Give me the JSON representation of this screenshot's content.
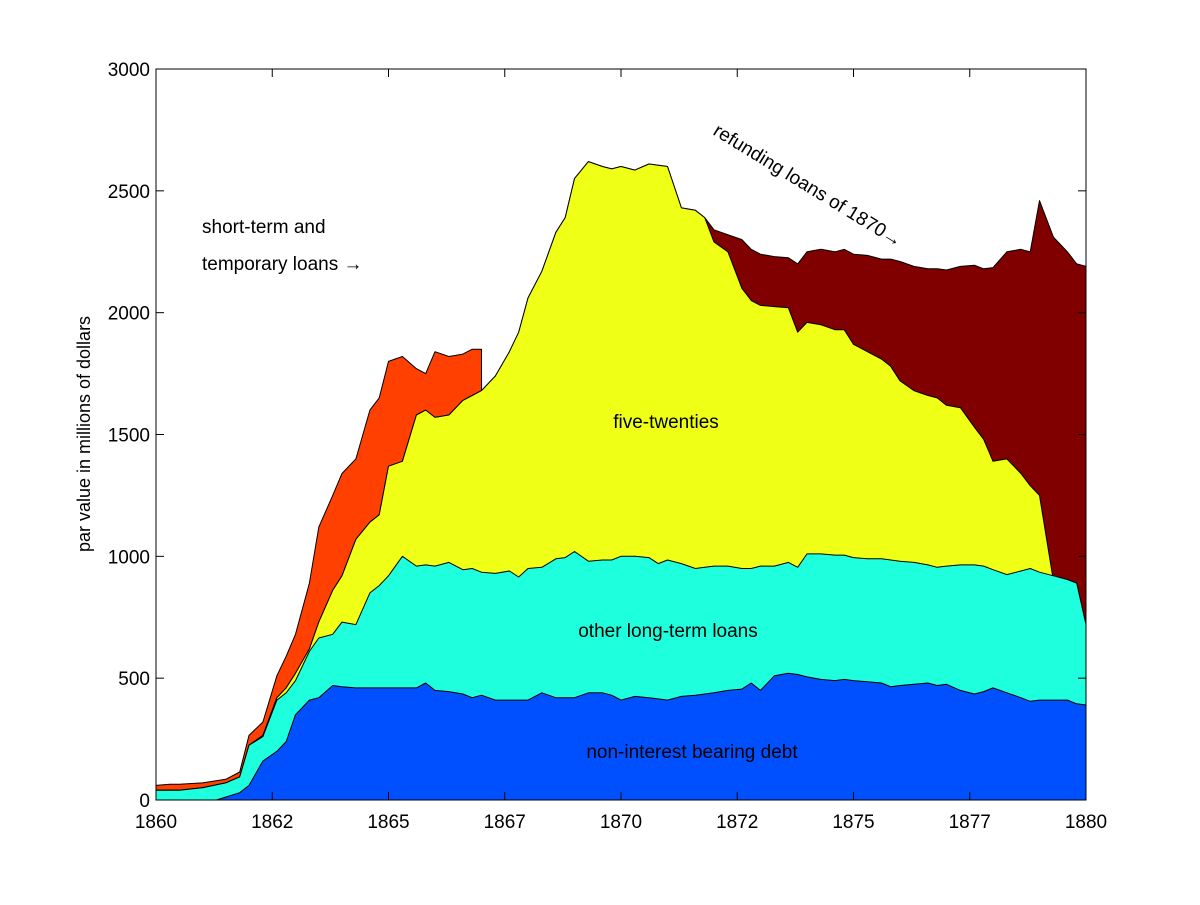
{
  "chart_data": {
    "type": "area",
    "stacked": true,
    "title": "",
    "xlabel": "",
    "ylabel": "par value in millions of dollars",
    "xlim": [
      1860,
      1880
    ],
    "ylim": [
      0,
      3000
    ],
    "grid": false,
    "x_ticks": [
      {
        "value": 1860,
        "label": "1860"
      },
      {
        "value": 1862.5,
        "label": "1862"
      },
      {
        "value": 1865,
        "label": "1865"
      },
      {
        "value": 1867.5,
        "label": "1867"
      },
      {
        "value": 1870,
        "label": "1870"
      },
      {
        "value": 1872.5,
        "label": "1872"
      },
      {
        "value": 1875,
        "label": "1875"
      },
      {
        "value": 1877.5,
        "label": "1877"
      },
      {
        "value": 1880,
        "label": "1880"
      }
    ],
    "y_ticks": [
      {
        "value": 0,
        "label": "0"
      },
      {
        "value": 500,
        "label": "500"
      },
      {
        "value": 1000,
        "label": "1000"
      },
      {
        "value": 1500,
        "label": "1500"
      },
      {
        "value": 2000,
        "label": "2000"
      },
      {
        "value": 2500,
        "label": "2500"
      },
      {
        "value": 3000,
        "label": "3000"
      }
    ],
    "annotations": [
      {
        "id": "short_term_1",
        "text": "short-term and"
      },
      {
        "id": "short_term_2",
        "text": "temporary loans →"
      },
      {
        "id": "refunding",
        "text": "refunding loans of 1870→"
      },
      {
        "id": "five_twenties",
        "text": "five-twenties"
      },
      {
        "id": "other_long_term",
        "text": "other long-term loans"
      },
      {
        "id": "non_interest",
        "text": "non-interest bearing debt"
      }
    ],
    "series_note": "cumulative tops of stacked bands, read at each x",
    "series": [
      {
        "key": "non_interest",
        "color": "#0050ff",
        "x": [
          1860.3,
          1861.3,
          1861.8,
          1862.0,
          1862.3,
          1862.6,
          1862.8,
          1863.0,
          1863.3,
          1863.5,
          1863.8,
          1864.0,
          1864.3,
          1864.6,
          1864.8,
          1865.0,
          1865.3,
          1865.6,
          1865.8,
          1866.0,
          1866.3,
          1866.6,
          1866.8,
          1867.0,
          1867.3,
          1867.6,
          1867.8,
          1868.0,
          1868.3,
          1868.6,
          1868.8,
          1869.0,
          1869.3,
          1869.6,
          1869.8,
          1870.0,
          1870.3,
          1870.6,
          1870.8,
          1871.0,
          1871.3,
          1871.6,
          1871.8,
          1872.0,
          1872.3,
          1872.6,
          1872.8,
          1873.0,
          1873.3,
          1873.6,
          1873.8,
          1874.0,
          1874.3,
          1874.6,
          1874.8,
          1875.0,
          1875.3,
          1875.6,
          1875.8,
          1876.0,
          1876.3,
          1876.6,
          1876.8,
          1877.0,
          1877.3,
          1877.6,
          1877.8,
          1878.0,
          1878.3,
          1878.6,
          1878.8,
          1879.0,
          1879.3,
          1879.6,
          1879.8,
          1880.0
        ],
        "tops": [
          0,
          0,
          30,
          60,
          160,
          200,
          240,
          350,
          410,
          420,
          470,
          465,
          460,
          460,
          460,
          460,
          460,
          460,
          480,
          450,
          445,
          435,
          420,
          430,
          410,
          410,
          410,
          410,
          440,
          420,
          420,
          420,
          440,
          440,
          430,
          410,
          425,
          420,
          415,
          410,
          425,
          430,
          435,
          440,
          450,
          455,
          480,
          450,
          510,
          520,
          515,
          505,
          495,
          490,
          495,
          490,
          485,
          480,
          465,
          470,
          475,
          480,
          470,
          475,
          450,
          435,
          445,
          460,
          440,
          420,
          405,
          410,
          410,
          410,
          395,
          390
        ]
      },
      {
        "key": "other_long_term",
        "color": "#1effde",
        "x": [
          1860.0,
          1860.5,
          1861.0,
          1861.5,
          1861.8,
          1862.0,
          1862.3,
          1862.6,
          1862.8,
          1863.0,
          1863.3,
          1863.5,
          1863.8,
          1864.0,
          1864.3,
          1864.6,
          1864.8,
          1865.0,
          1865.3,
          1865.6,
          1865.8,
          1866.0,
          1866.3,
          1866.6,
          1866.8,
          1867.0,
          1867.3,
          1867.6,
          1867.8,
          1868.0,
          1868.3,
          1868.6,
          1868.8,
          1869.0,
          1869.3,
          1869.6,
          1869.8,
          1870.0,
          1870.3,
          1870.6,
          1870.8,
          1871.0,
          1871.3,
          1871.6,
          1871.8,
          1872.0,
          1872.3,
          1872.6,
          1872.8,
          1873.0,
          1873.3,
          1873.6,
          1873.8,
          1874.0,
          1874.3,
          1874.6,
          1874.8,
          1875.0,
          1875.3,
          1875.6,
          1875.8,
          1876.0,
          1876.3,
          1876.6,
          1876.8,
          1877.0,
          1877.3,
          1877.6,
          1877.8,
          1878.0,
          1878.3,
          1878.6,
          1878.8,
          1879.0,
          1879.3,
          1879.6,
          1879.8,
          1880.0
        ],
        "tops": [
          40,
          40,
          50,
          70,
          95,
          225,
          260,
          410,
          440,
          490,
          610,
          665,
          680,
          730,
          720,
          850,
          880,
          920,
          1000,
          960,
          965,
          960,
          975,
          945,
          950,
          935,
          930,
          940,
          915,
          950,
          955,
          990,
          995,
          1020,
          980,
          985,
          985,
          1000,
          1000,
          995,
          970,
          985,
          970,
          950,
          955,
          960,
          960,
          950,
          950,
          960,
          960,
          975,
          955,
          1010,
          1010,
          1005,
          1005,
          995,
          990,
          990,
          985,
          980,
          975,
          965,
          955,
          960,
          965,
          965,
          960,
          945,
          925,
          940,
          950,
          935,
          920,
          905,
          890,
          720,
          690
        ]
      },
      {
        "key": "five_twenties",
        "color": "#f0ff16",
        "x": [
          1860.0,
          1860.5,
          1861.0,
          1861.5,
          1861.8,
          1862.0,
          1862.3,
          1862.6,
          1862.8,
          1863.0,
          1863.3,
          1863.5,
          1863.8,
          1864.0,
          1864.3,
          1864.6,
          1864.8,
          1865.0,
          1865.3,
          1865.6,
          1865.8,
          1866.0,
          1866.3,
          1866.6,
          1866.8,
          1867.0,
          1867.3,
          1867.6,
          1867.8,
          1868.0,
          1868.3,
          1868.6,
          1868.8,
          1869.0,
          1869.3,
          1869.6,
          1869.8,
          1870.0,
          1870.3,
          1870.6,
          1870.8,
          1871.0,
          1871.3,
          1871.6,
          1871.8,
          1872.0,
          1872.3,
          1872.6,
          1872.8,
          1873.0,
          1873.3,
          1873.6,
          1873.8,
          1874.0,
          1874.3,
          1874.6,
          1874.8,
          1875.0,
          1875.3,
          1875.6,
          1875.8,
          1876.0,
          1876.3,
          1876.6,
          1876.8,
          1877.0,
          1877.3,
          1877.6,
          1877.8,
          1878.0,
          1878.3,
          1878.6,
          1878.8,
          1879.0,
          1879.3,
          1879.6,
          1879.8,
          1880.0
        ],
        "tops": [
          40,
          40,
          50,
          70,
          95,
          225,
          265,
          420,
          460,
          520,
          620,
          730,
          860,
          920,
          1070,
          1140,
          1170,
          1370,
          1390,
          1580,
          1600,
          1570,
          1580,
          1640,
          1660,
          1680,
          1740,
          1840,
          1920,
          2060,
          2170,
          2330,
          2390,
          2550,
          2620,
          2600,
          2590,
          2600,
          2585,
          2610,
          2605,
          2600,
          2430,
          2420,
          2390,
          2290,
          2250,
          2100,
          2050,
          2030,
          2025,
          2020,
          1920,
          1960,
          1950,
          1930,
          1930,
          1870,
          1840,
          1810,
          1780,
          1720,
          1680,
          1660,
          1650,
          1620,
          1610,
          1530,
          1480,
          1390,
          1400,
          1340,
          1290,
          1250,
          900,
          750,
          690
        ]
      },
      {
        "key": "refunding_1870",
        "color": "#800000",
        "x": [
          1860.0,
          1860.5,
          1861.0,
          1861.5,
          1861.8,
          1862.0,
          1862.3,
          1862.6,
          1862.8,
          1863.0,
          1863.3,
          1863.5,
          1863.8,
          1864.0,
          1864.3,
          1864.6,
          1864.8,
          1865.0,
          1865.3,
          1865.6,
          1865.8,
          1866.0,
          1866.3,
          1866.6,
          1866.8,
          1867.0,
          1867.3,
          1867.6,
          1867.8,
          1868.0,
          1868.3,
          1868.6,
          1868.8,
          1869.0,
          1869.3,
          1869.6,
          1869.8,
          1870.0,
          1870.3,
          1870.6,
          1870.8,
          1871.0,
          1871.3,
          1871.6,
          1871.8,
          1872.0,
          1872.3,
          1872.6,
          1872.8,
          1873.0,
          1873.3,
          1873.6,
          1873.8,
          1874.0,
          1874.3,
          1874.6,
          1874.8,
          1875.0,
          1875.3,
          1875.6,
          1875.8,
          1876.0,
          1876.3,
          1876.6,
          1876.8,
          1877.0,
          1877.3,
          1877.6,
          1877.8,
          1878.0,
          1878.3,
          1878.6,
          1878.8,
          1879.0,
          1879.3,
          1879.6,
          1879.8,
          1880.0
        ],
        "tops": [
          40,
          40,
          50,
          70,
          95,
          225,
          265,
          420,
          460,
          520,
          620,
          730,
          860,
          920,
          1070,
          1140,
          1170,
          1370,
          1390,
          1580,
          1600,
          1570,
          1580,
          1640,
          1660,
          1680,
          1740,
          1840,
          1920,
          2060,
          2170,
          2330,
          2390,
          2550,
          2620,
          2600,
          2590,
          2600,
          2585,
          2610,
          2605,
          2600,
          2430,
          2420,
          2390,
          2340,
          2320,
          2300,
          2260,
          2240,
          2230,
          2225,
          2200,
          2250,
          2260,
          2250,
          2260,
          2240,
          2235,
          2220,
          2220,
          2210,
          2190,
          2180,
          2180,
          2175,
          2190,
          2195,
          2180,
          2185,
          2250,
          2260,
          2250,
          2460,
          2310,
          2250,
          2200,
          2190
        ]
      },
      {
        "key": "short_term_temporary",
        "color": "#ff4000",
        "x": [
          1860.0,
          1860.3,
          1860.5,
          1861.0,
          1861.5,
          1861.8,
          1862.0,
          1862.3,
          1862.6,
          1862.8,
          1863.0,
          1863.3,
          1863.5,
          1863.8,
          1864.0,
          1864.3,
          1864.6,
          1864.8,
          1865.0,
          1865.3,
          1865.6,
          1865.8,
          1866.0,
          1866.3,
          1866.6,
          1866.8,
          1867.0
        ],
        "tops": [
          60,
          65,
          65,
          70,
          85,
          115,
          265,
          320,
          510,
          590,
          680,
          890,
          1120,
          1250,
          1340,
          1400,
          1600,
          1650,
          1800,
          1820,
          1770,
          1750,
          1840,
          1820,
          1830,
          1850,
          1850
        ]
      }
    ]
  }
}
